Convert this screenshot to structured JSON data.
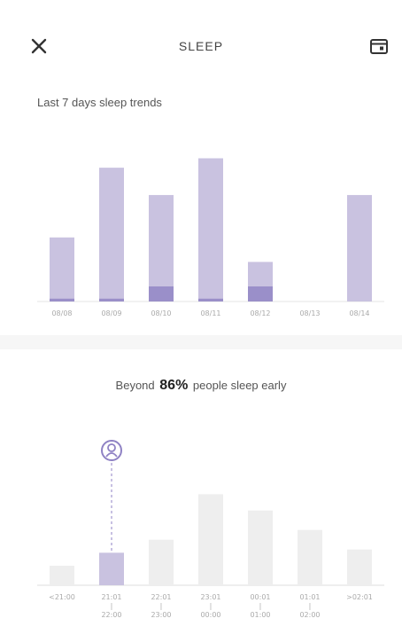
{
  "header": {
    "title": "SLEEP",
    "close_icon": "close-icon",
    "calendar_icon": "calendar-icon"
  },
  "trend": {
    "title": "Last 7 days sleep trends"
  },
  "early": {
    "prefix": "Beyond",
    "percent": "86%",
    "suffix": "people sleep early"
  },
  "colors": {
    "bar": "#c9c2e0",
    "bar_accent": "#9a8fc9",
    "bar_grey": "#eeeeee",
    "marker": "#8f82c4"
  },
  "chart_data": [
    {
      "type": "bar",
      "categories": [
        "08/08",
        "08/09",
        "08/10",
        "08/11",
        "08/12",
        "08/13",
        "08/14"
      ],
      "series": [
        {
          "values": [
            6.8,
            14.2,
            11.3,
            15.2,
            4.2,
            0,
            11.3
          ]
        },
        {
          "values": [
            0.3,
            0.3,
            1.6,
            0.3,
            1.6,
            0,
            0
          ]
        }
      ],
      "ylim": [
        0,
        16
      ],
      "xlabel": "",
      "ylabel": "",
      "grid": false
    },
    {
      "type": "bar",
      "categories": [
        "<21:00",
        "21:01\n|\n22:00",
        "22:01\n|\n23:00",
        "23:01\n|\n00:00",
        "00:01\n|\n01:00",
        "01:01\n|\n02:00",
        ">02:01"
      ],
      "values": [
        6,
        10,
        14,
        28,
        23,
        17,
        11
      ],
      "highlight_index": 1,
      "ylim": [
        0,
        30
      ],
      "xlabel": "",
      "ylabel": "",
      "grid": false
    }
  ]
}
